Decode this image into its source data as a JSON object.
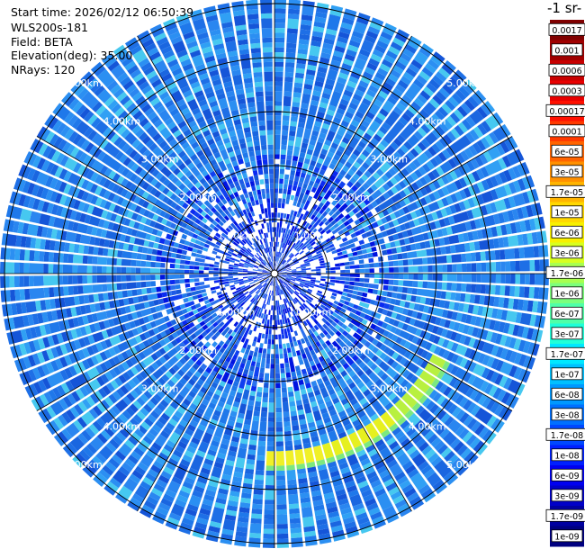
{
  "header": {
    "start_time": "Start time: 2026/02/12 06:50:39",
    "instrument": "WLS200s-181",
    "field": "Field: BETA",
    "elevation": "Elevation(deg): 35.00",
    "nrays": "NRays: 120"
  },
  "colorbar": {
    "title": "-1 sr-",
    "tick_labels": [
      "0.0017",
      "0.001",
      "0.0006",
      "0.0003",
      "0.00017",
      "0.0001",
      "6e-05",
      "3e-05",
      "1.7e-05",
      "1e-05",
      "6e-06",
      "3e-06",
      "1.7e-06",
      "1e-06",
      "6e-07",
      "3e-07",
      "1.7e-07",
      "1e-07",
      "6e-08",
      "3e-08",
      "1.7e-08",
      "1e-08",
      "6e-09",
      "3e-09",
      "1.7e-09",
      "1e-09"
    ],
    "colors": [
      "#800000",
      "#a00000",
      "#c80000",
      "#e80000",
      "#ff1000",
      "#ff3a00",
      "#ff6400",
      "#ff9000",
      "#ffb400",
      "#ffd800",
      "#f8f000",
      "#d8ff20",
      "#a8ff50",
      "#7cff7c",
      "#50ffa8",
      "#20ffd8",
      "#00e8ff",
      "#00c0ff",
      "#0098ff",
      "#0070ff",
      "#0048ff",
      "#0020ff",
      "#0000f0",
      "#0000c8",
      "#0000a0",
      "#000080"
    ]
  },
  "chart_data": {
    "type": "heatmap",
    "projection": "polar-ppi",
    "field": "BETA",
    "units_fragment": "-1 sr-",
    "n_rays": 120,
    "range_max_km": 5.5,
    "range_rings_km": [
      1,
      2,
      3,
      4,
      5
    ],
    "ring_label_text": [
      "1.00km",
      "2.00km",
      "3.00km",
      "4.00km",
      "5.00km"
    ],
    "background_level": "1e-07",
    "feature": {
      "description_level": "1.7e-05",
      "range_km": [
        3.2,
        3.6
      ],
      "azimuth_deg": [
        118,
        182
      ]
    }
  }
}
